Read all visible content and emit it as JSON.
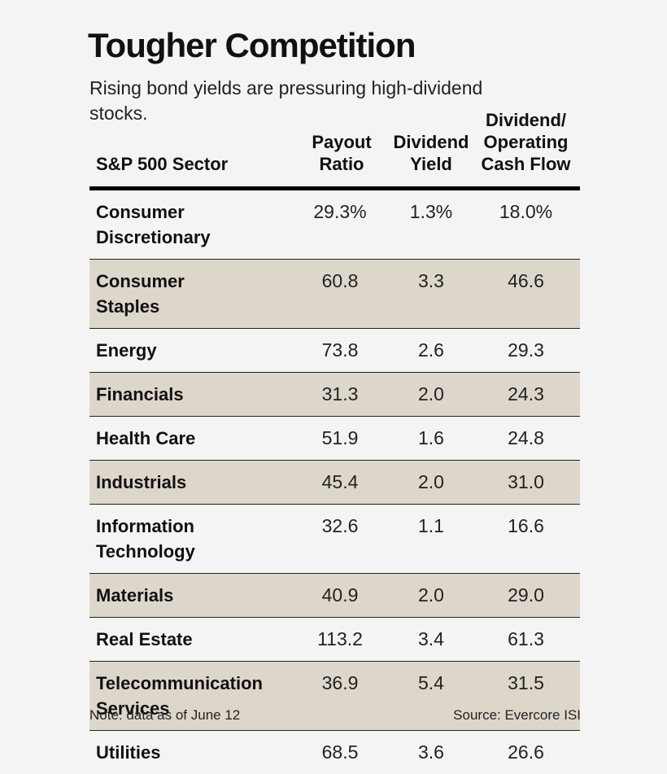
{
  "header": {
    "title": "Tougher Competition",
    "subtitle": "Rising bond yields are pressuring high-dividend stocks."
  },
  "table": {
    "columns": {
      "sector": [
        "S&P 500 Sector"
      ],
      "payout": [
        "Payout",
        "Ratio"
      ],
      "yield": [
        "Dividend",
        "Yield"
      ],
      "cash": [
        "Dividend/",
        "Operating",
        "Cash Flow"
      ]
    },
    "rows": [
      {
        "sector": [
          "Consumer",
          "Discretionary"
        ],
        "payout": "29.3%",
        "yield": "1.3%",
        "cash": "18.0%"
      },
      {
        "sector": [
          "Consumer",
          "Staples"
        ],
        "payout": "60.8",
        "yield": "3.3",
        "cash": "46.6"
      },
      {
        "sector": [
          "Energy"
        ],
        "payout": "73.8",
        "yield": "2.6",
        "cash": "29.3"
      },
      {
        "sector": [
          "Financials"
        ],
        "payout": "31.3",
        "yield": "2.0",
        "cash": "24.3"
      },
      {
        "sector": [
          "Health Care"
        ],
        "payout": "51.9",
        "yield": "1.6",
        "cash": "24.8"
      },
      {
        "sector": [
          "Industrials"
        ],
        "payout": "45.4",
        "yield": "2.0",
        "cash": "31.0"
      },
      {
        "sector": [
          "Information",
          "Technology"
        ],
        "payout": "32.6",
        "yield": "1.1",
        "cash": "16.6"
      },
      {
        "sector": [
          "Materials"
        ],
        "payout": "40.9",
        "yield": "2.0",
        "cash": "29.0"
      },
      {
        "sector": [
          "Real Estate"
        ],
        "payout": "113.2",
        "yield": "3.4",
        "cash": "61.3"
      },
      {
        "sector": [
          "Telecommunication",
          "Services"
        ],
        "payout": "36.9",
        "yield": "5.4",
        "cash": "31.5"
      },
      {
        "sector": [
          "Utilities"
        ],
        "payout": "68.5",
        "yield": "3.6",
        "cash": "26.6"
      }
    ]
  },
  "footer": {
    "note": "Note: data as of June 12",
    "source": "Source: Evercore ISI"
  },
  "colors": {
    "shaded_row": "#ddd7cb",
    "background": "#f4f4f4"
  }
}
